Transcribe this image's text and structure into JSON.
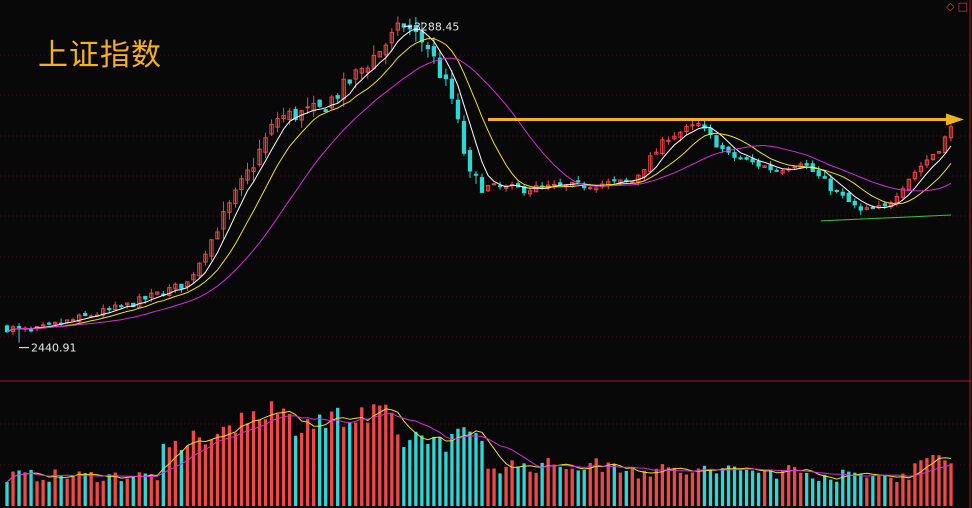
{
  "title": "上证指数",
  "colors": {
    "up": "#f04747",
    "down": "#2fd6d6",
    "ma5": "#ffffff",
    "ma10": "#f0e020",
    "ma20": "#d030d8",
    "support": "#33cc33",
    "arrow": "#f5b21b",
    "divider": "#b01818",
    "grid": "#4a0e0e"
  },
  "header_icons": [
    "diamond-icon",
    "square-icon"
  ],
  "chart_data": [
    {
      "type": "candlestick",
      "title": "上证指数",
      "annotations": {
        "high_label": "3288.45",
        "low_label": "2440.91",
        "high_value": 3288.45,
        "low_value": 2440.91
      },
      "y_range": [
        2400,
        3300
      ],
      "trend": {
        "start": 2440.91,
        "phases": [
          {
            "name": "rise",
            "end_value": 3288.45
          },
          {
            "name": "fall",
            "end_value": 2840
          },
          {
            "name": "range",
            "end_value": 2860
          },
          {
            "name": "bounce",
            "end_value": 3030
          },
          {
            "name": "decline",
            "end_value": 2760
          },
          {
            "name": "recovery",
            "end_value": 3000
          }
        ]
      },
      "moving_averages": [
        "MA5",
        "MA10",
        "MA20"
      ],
      "resistance_line_value": 3035,
      "support_line_value": [
        2765,
        2770
      ]
    },
    {
      "type": "bar",
      "title": "volume",
      "moving_averages": [
        "MA5",
        "MA10"
      ]
    }
  ]
}
